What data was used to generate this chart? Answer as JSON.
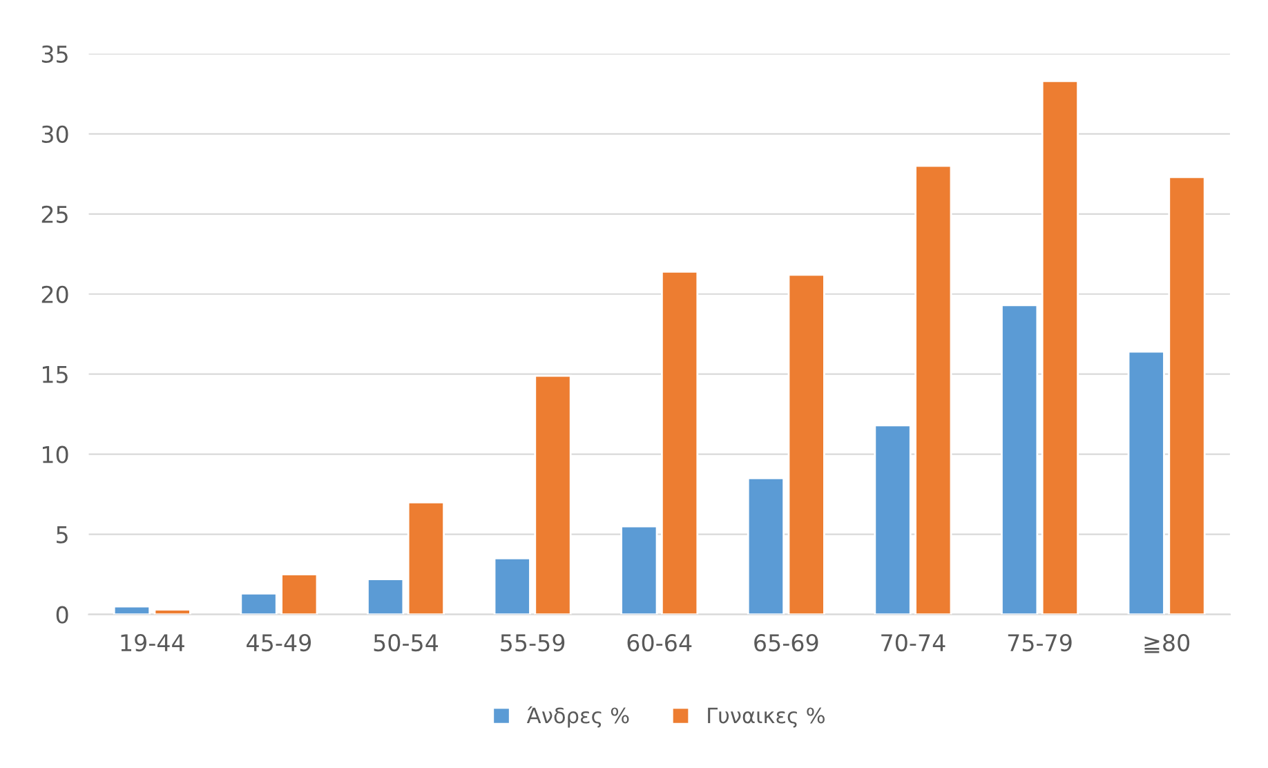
{
  "chart_data": {
    "type": "bar",
    "categories": [
      "19-44",
      "45-49",
      "50-54",
      "55-59",
      "60-64",
      "65-69",
      "70-74",
      "75-79",
      "≧80"
    ],
    "series": [
      {
        "name": "Άνδρες %",
        "color": "#5b9bd5",
        "values": [
          0.5,
          1.3,
          2.2,
          3.5,
          5.5,
          8.5,
          11.8,
          19.3,
          16.4
        ]
      },
      {
        "name": "Γυναικες %",
        "color": "#ed7d31",
        "values": [
          0.3,
          2.5,
          7.0,
          14.9,
          21.4,
          21.2,
          28.0,
          33.3,
          27.3
        ]
      }
    ],
    "ylim": [
      0,
      35
    ],
    "yticks": [
      0,
      5,
      10,
      15,
      20,
      25,
      30,
      35
    ],
    "grid": "y",
    "legend": "bottom"
  }
}
